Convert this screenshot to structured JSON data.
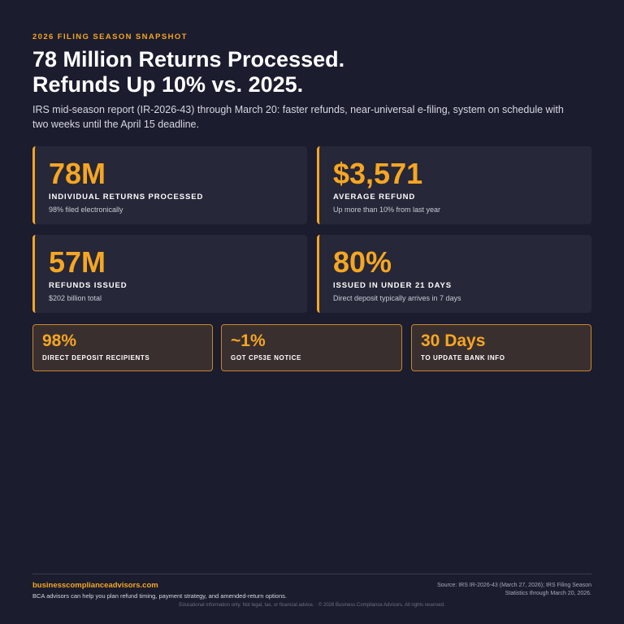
{
  "header": {
    "eyebrow": "2026 FILING SEASON SNAPSHOT",
    "headline_line1": "78 Million Returns Processed.",
    "headline_line2": "Refunds Up 10% vs. 2025.",
    "subtitle": "IRS mid-season report (IR-2026-43) through March 20: faster refunds, near-universal e-filing, system on schedule with two weeks until the April 15 deadline."
  },
  "stats": [
    {
      "value": "78M",
      "label": "INDIVIDUAL RETURNS PROCESSED",
      "note": "98% filed electronically"
    },
    {
      "value": "$3,571",
      "label": "AVERAGE REFUND",
      "note": "Up more than 10% from last year"
    },
    {
      "value": "57M",
      "label": "REFUNDS ISSUED",
      "note": "$202 billion total"
    },
    {
      "value": "80%",
      "label": "ISSUED IN UNDER 21 DAYS",
      "note": "Direct deposit typically arrives in 7 days"
    }
  ],
  "highlights": [
    {
      "value": "98%",
      "label": "DIRECT DEPOSIT RECIPIENTS"
    },
    {
      "value": "~1%",
      "label": "GOT CP53E NOTICE"
    },
    {
      "value": "30 Days",
      "label": "TO UPDATE BANK INFO"
    }
  ],
  "footer": {
    "site": "businesscomplianceadvisors.com",
    "cta": "BCA advisors can help you plan refund timing, payment strategy, and amended-return options.",
    "source": "Source: IRS IR-2026-43 (March 27, 2026); IRS Filing Season Statistics through March 20, 2026.",
    "legal": "Educational information only. Not legal, tax, or financial advice.  ·  © 2026 Business Compliance Advisors. All rights reserved."
  },
  "colors": {
    "background": "#1b1c2e",
    "accent": "#f5a623",
    "card": "#262738",
    "highlight_card": "#3a2f2f"
  }
}
